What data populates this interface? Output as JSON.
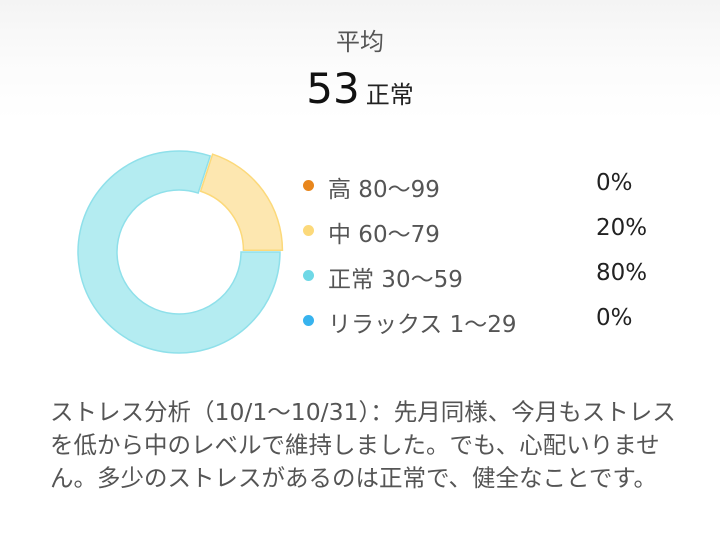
{
  "header": {
    "label": "平均",
    "value": "53",
    "status": "正常"
  },
  "chart_data": {
    "type": "pie",
    "variant": "donut",
    "categories": [
      "高 80〜99",
      "中 60〜79",
      "正常 30〜59",
      "リラックス 1〜29"
    ],
    "values": [
      0,
      20,
      80,
      0
    ],
    "percent_labels": [
      "0%",
      "20%",
      "80%",
      "0%"
    ],
    "colors": [
      "#e8861c",
      "#fde7b0",
      "#b4ecf1",
      "#37b3ee"
    ],
    "dot_colors": [
      "#e8861c",
      "#fcd97a",
      "#6fd8e6",
      "#37b3ee"
    ],
    "legend_placement": "right"
  },
  "summary": "ストレス分析（10/1〜10/31）：先月同様、今月もストレスを低から中のレベルで維持しました。でも、心配いりません。多少のストレスがあるのは正常で、健全なことです。"
}
